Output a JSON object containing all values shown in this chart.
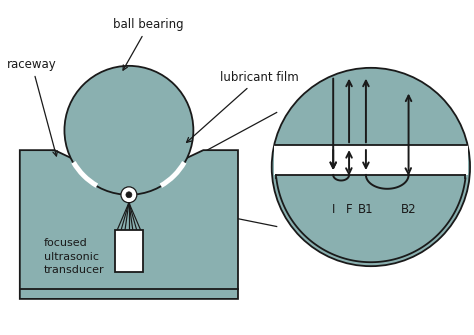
{
  "bg_color": "#ffffff",
  "fill_color": "#8ab0b0",
  "line_color": "#1a1a1a",
  "text_color": "#1a1a1a",
  "labels": {
    "ball_bearing": "ball bearing",
    "raceway": "raceway",
    "lubricant_film": "lubricant film",
    "transducer": "focused\nultrasonic\ntransducer",
    "I": "I",
    "F": "F",
    "B1": "B1",
    "B2": "B2"
  },
  "figsize": [
    4.74,
    3.35
  ],
  "dpi": 100
}
